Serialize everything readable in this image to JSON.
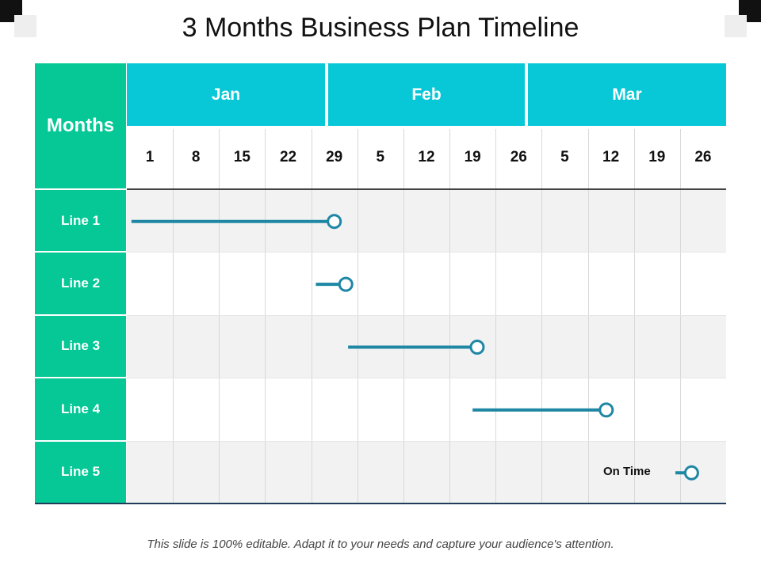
{
  "title": "3 Months Business Plan Timeline",
  "header": {
    "months_label": "Months",
    "months": [
      "Jan",
      "Feb",
      "Mar"
    ],
    "days": [
      "1",
      "8",
      "15",
      "22",
      "29",
      "5",
      "12",
      "19",
      "26",
      "5",
      "12",
      "19",
      "26"
    ]
  },
  "rows": [
    {
      "label": "Line 1",
      "start_col": 0.1,
      "end_col": 4.5
    },
    {
      "label": "Line 2",
      "start_col": 4.1,
      "end_col": 4.75
    },
    {
      "label": "Line 3",
      "start_col": 4.8,
      "end_col": 7.6
    },
    {
      "label": "Line 4",
      "start_col": 7.5,
      "end_col": 10.4
    },
    {
      "label": "Line 5",
      "start_col": 11.9,
      "end_col": 12.25
    }
  ],
  "status_label": "On Time",
  "footer": "This slide is 100% editable. Adapt it to your needs and capture your audience's attention.",
  "colors": {
    "green": "#05C896",
    "cyan": "#08C8D8",
    "bar": "#1E87A4",
    "row_shade": "#F2F2F2",
    "grid": "#D8D8D8",
    "axis": "#444444",
    "bottom_rule": "#1F3C5A"
  }
}
